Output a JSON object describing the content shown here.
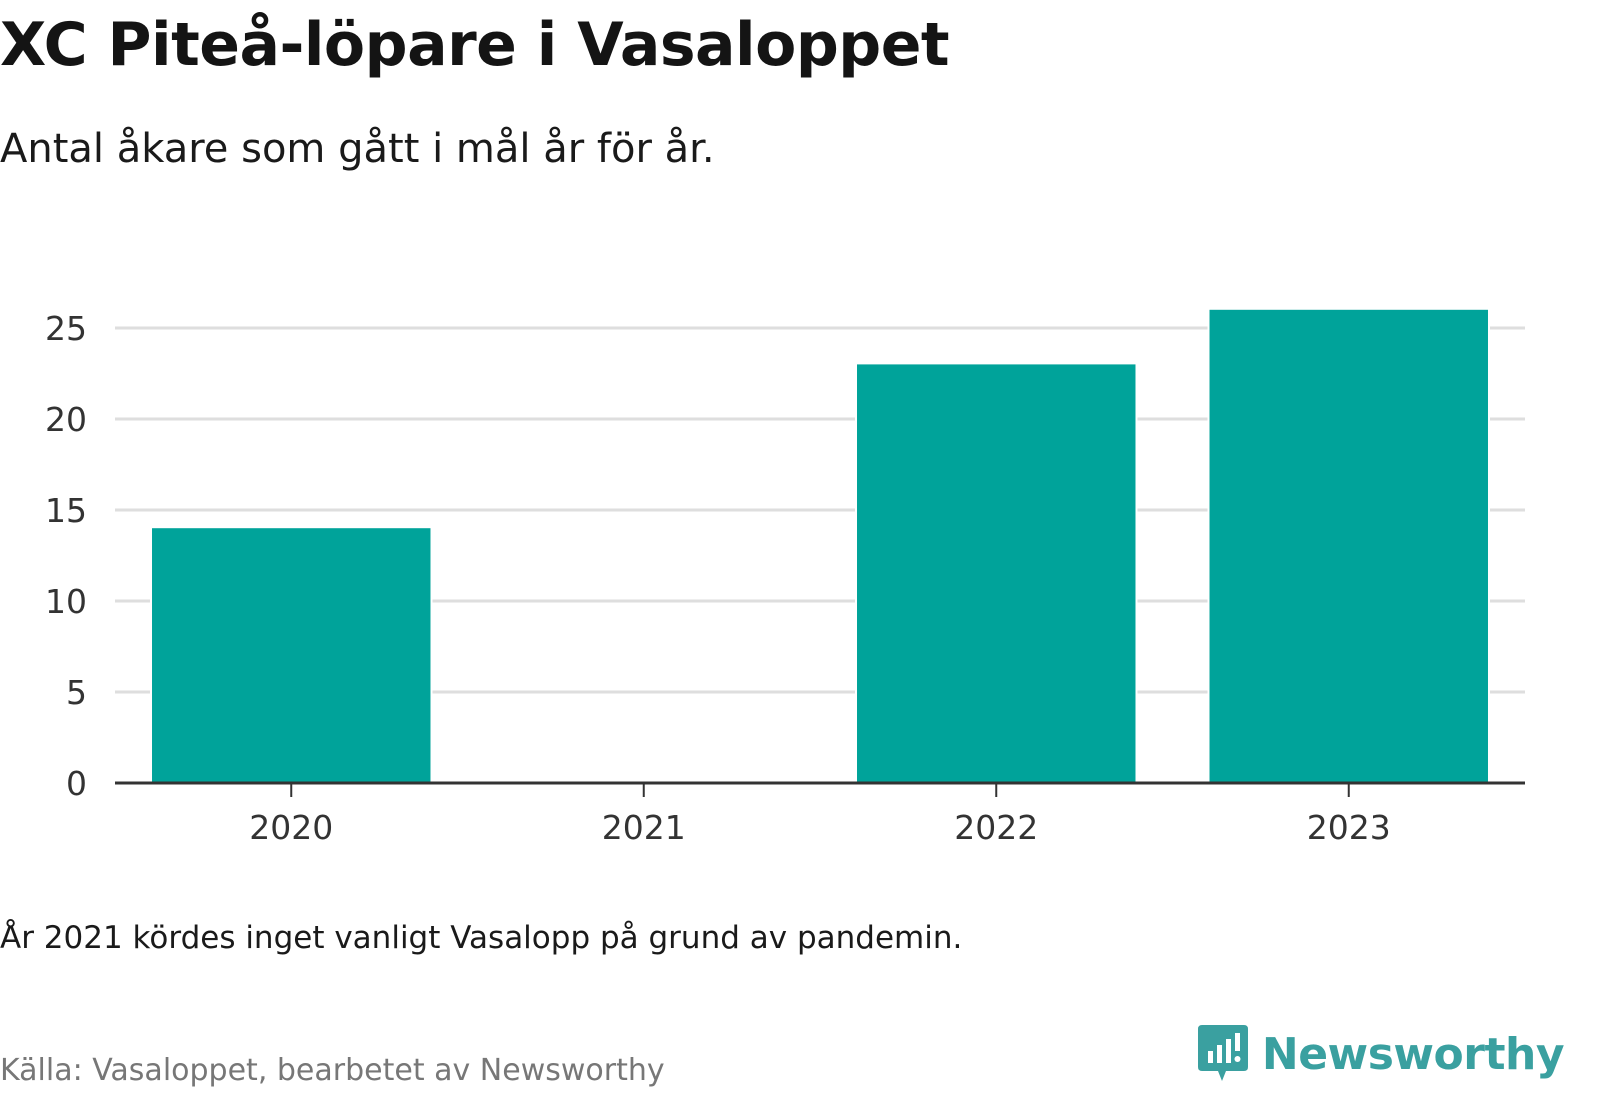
{
  "title": "XC Piteå-löpare i Vasaloppet",
  "subtitle": "Antal åkare som gått i mål år för år.",
  "note": "År 2021 kördes inget vanligt Vasalopp på grund av pandemin.",
  "source": "Källa: Vasaloppet, bearbetet av Newsworthy",
  "brand": {
    "name": "Newsworthy",
    "color": "#3aa0a0",
    "icon": "bar-chart-speech-icon"
  },
  "colors": {
    "bar": "#00a39a",
    "grid": "#dedede",
    "axis": "#333333",
    "tick_text": "#333333"
  },
  "chart_data": {
    "type": "bar",
    "categories": [
      "2020",
      "2021",
      "2022",
      "2023"
    ],
    "values": [
      14,
      0,
      23,
      26
    ],
    "ylim": [
      0,
      25
    ],
    "yticks": [
      0,
      5,
      10,
      15,
      20,
      25
    ],
    "grid": true,
    "legend": "none"
  }
}
